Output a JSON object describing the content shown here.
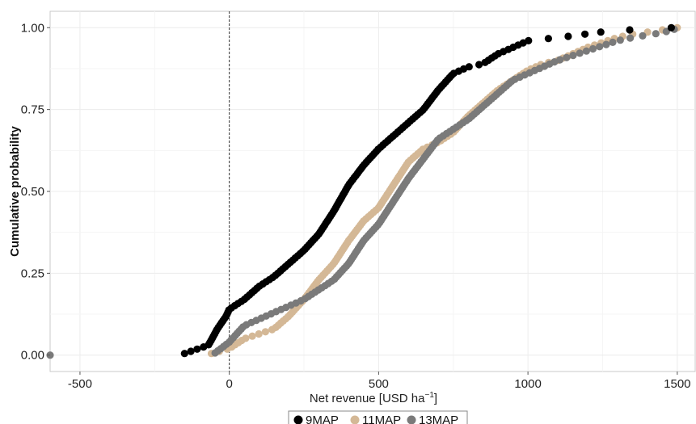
{
  "chart_data": {
    "type": "scatter",
    "title": "",
    "xlabel": "Net revenue [USD ha",
    "xlabel_superscript": "−1",
    "xlabel_suffix": "]",
    "ylabel": "Cumulative probability",
    "xlim": [
      -600,
      1560
    ],
    "ylim": [
      -0.05,
      1.05
    ],
    "x_ticks": [
      -500,
      0,
      500,
      1000,
      1500
    ],
    "x_tick_labels": [
      "-500",
      "0",
      "500",
      "1000",
      "1500"
    ],
    "y_ticks": [
      0,
      0.25,
      0.5,
      0.75,
      1.0
    ],
    "y_tick_labels": [
      "0.00",
      "0.25",
      "0.50",
      "0.75",
      "1.00"
    ],
    "reference_line_x": 0,
    "grid": true,
    "legend_position": "bottom",
    "series": [
      {
        "name": "9MAP",
        "color": "#000000",
        "curve_x": [
          -150,
          -70,
          -40,
          -10,
          0,
          50,
          100,
          150,
          200,
          250,
          300,
          350,
          400,
          450,
          500,
          550,
          600,
          650,
          700,
          750,
          800,
          850,
          900,
          950,
          1000,
          1150,
          1270,
          1480
        ],
        "curve_y": [
          0.005,
          0.03,
          0.08,
          0.12,
          0.14,
          0.17,
          0.21,
          0.24,
          0.28,
          0.32,
          0.37,
          0.44,
          0.52,
          0.58,
          0.63,
          0.67,
          0.71,
          0.75,
          0.81,
          0.86,
          0.88,
          0.89,
          0.92,
          0.94,
          0.96,
          0.975,
          0.99,
          1.0
        ]
      },
      {
        "name": "11MAP",
        "color": "#d4b896",
        "curve_x": [
          -60,
          0,
          50,
          150,
          200,
          250,
          300,
          350,
          400,
          450,
          500,
          550,
          600,
          650,
          700,
          750,
          800,
          850,
          900,
          950,
          1000,
          1050,
          1100,
          1150,
          1200,
          1300,
          1350,
          1500
        ],
        "curve_y": [
          0.005,
          0.02,
          0.05,
          0.08,
          0.12,
          0.17,
          0.23,
          0.28,
          0.35,
          0.41,
          0.45,
          0.52,
          0.59,
          0.63,
          0.65,
          0.68,
          0.73,
          0.77,
          0.81,
          0.84,
          0.87,
          0.89,
          0.9,
          0.92,
          0.94,
          0.97,
          0.98,
          1.0
        ]
      },
      {
        "name": "13MAP",
        "color": "#7a7a7a",
        "curve_x": [
          -600,
          -50,
          0,
          50,
          150,
          200,
          250,
          300,
          350,
          400,
          450,
          500,
          550,
          600,
          650,
          700,
          750,
          800,
          850,
          900,
          950,
          1000,
          1100,
          1200,
          1300,
          1350,
          1450,
          1490
        ],
        "curve_y": [
          0.0,
          0.005,
          0.04,
          0.09,
          0.13,
          0.15,
          0.17,
          0.2,
          0.23,
          0.28,
          0.35,
          0.4,
          0.47,
          0.54,
          0.6,
          0.66,
          0.69,
          0.72,
          0.76,
          0.8,
          0.84,
          0.86,
          0.9,
          0.93,
          0.96,
          0.97,
          0.985,
          0.995
        ]
      }
    ]
  }
}
